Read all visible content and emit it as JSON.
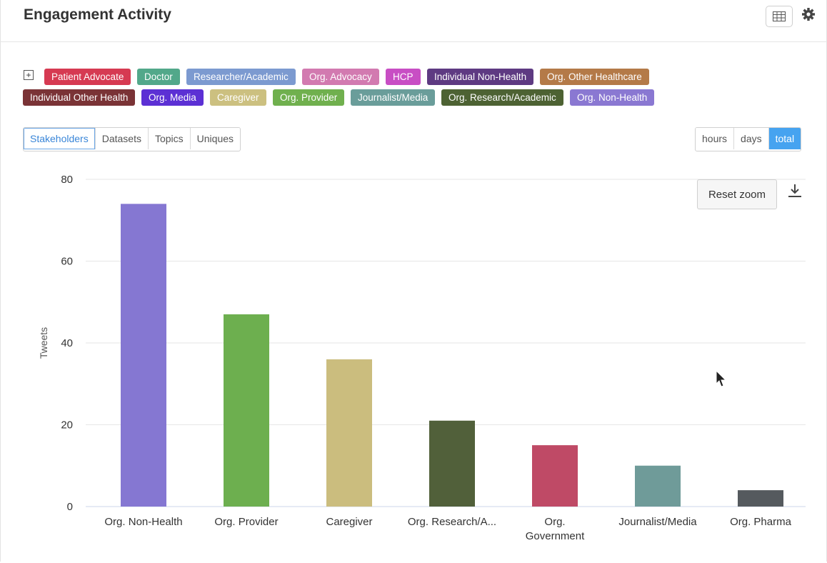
{
  "header": {
    "title": "Engagement Activity"
  },
  "icons": {
    "table": "table-icon",
    "settings": "gear-icon",
    "expand": "plus-square-icon",
    "download": "download-icon"
  },
  "legend_tags": [
    {
      "label": "Patient Advocate",
      "color": "#d63a52"
    },
    {
      "label": "Doctor",
      "color": "#52a88a"
    },
    {
      "label": "Researcher/Academic",
      "color": "#7c9ad0"
    },
    {
      "label": "Org. Advocacy",
      "color": "#d27ab0"
    },
    {
      "label": "HCP",
      "color": "#c84ec4"
    },
    {
      "label": "Individual Non-Health",
      "color": "#5e3a82"
    },
    {
      "label": "Org. Other Healthcare",
      "color": "#b47a48"
    },
    {
      "label": "Individual Other Health",
      "color": "#7a3336"
    },
    {
      "label": "Org. Media",
      "color": "#5c30d4"
    },
    {
      "label": "Caregiver",
      "color": "#ccc080"
    },
    {
      "label": "Org. Provider",
      "color": "#70b04e"
    },
    {
      "label": "Journalist/Media",
      "color": "#6a9d9a"
    },
    {
      "label": "Org. Research/Academic",
      "color": "#4d6233"
    },
    {
      "label": "Org. Non-Health",
      "color": "#8a78d2"
    }
  ],
  "view_tabs": [
    "Stakeholders",
    "Datasets",
    "Topics",
    "Uniques"
  ],
  "time_tabs": [
    "hours",
    "days",
    "total"
  ],
  "reset_zoom": "Reset zoom",
  "chart_data": {
    "type": "bar",
    "categories": [
      "Org. Non-Health",
      "Org. Provider",
      "Caregiver",
      "Org. Research/A...",
      "Org. Government",
      "Journalist/Media",
      "Org. Pharma"
    ],
    "values": [
      74,
      47,
      36,
      21,
      15,
      10,
      4
    ],
    "colors": [
      "#8577d2",
      "#6daf4f",
      "#cbbd7e",
      "#51603a",
      "#bf4a66",
      "#6f9b99",
      "#555a5e"
    ],
    "ylabel": "Tweets",
    "xlabel": "",
    "ylim": [
      0,
      80
    ],
    "yticks": [
      0,
      20,
      40,
      60,
      80
    ],
    "grid": true
  }
}
